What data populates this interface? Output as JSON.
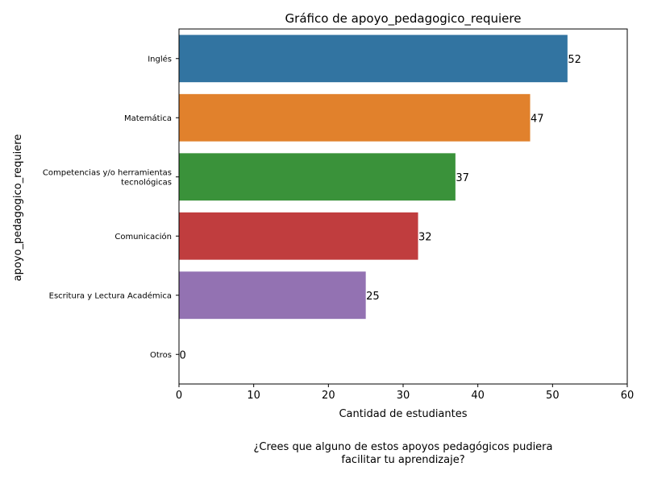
{
  "chart_data": {
    "type": "bar",
    "orientation": "horizontal",
    "title": "Gráfico de apoyo_pedagogico_requiere",
    "xlabel": "Cantidad de estudiantes",
    "ylabel": "apoyo_pedagogico_requiere",
    "categories": [
      "Inglés",
      "Matemática",
      "Competencias y/o herramientas\ntecnológicas",
      "Comunicación",
      "Escritura y Lectura Académica",
      "Otros"
    ],
    "values": [
      52,
      47,
      37,
      32,
      25,
      0
    ],
    "colors": [
      "#3274a1",
      "#e1812c",
      "#3a923a",
      "#c03d3e",
      "#9372b2",
      "#845b53"
    ],
    "xlim": [
      0,
      60
    ],
    "xticks": [
      0,
      10,
      20,
      30,
      40,
      50,
      60
    ],
    "grid": false,
    "data_labels": true
  },
  "caption": {
    "line1": "¿Crees que alguno de estos apoyos pedagógicos pudiera",
    "line2": "facilitar tu aprendizaje?"
  }
}
